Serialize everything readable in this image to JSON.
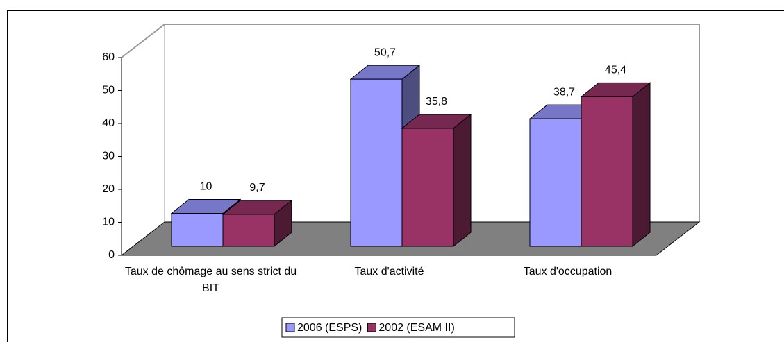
{
  "chart_data": {
    "type": "bar3d",
    "categories": [
      "Taux de chômage  au sens strict du BIT",
      "Taux d'activité",
      "Taux d'occupation"
    ],
    "series": [
      {
        "name": "2006 (ESPS)",
        "color": "#9999ff",
        "values": [
          10,
          50.7,
          38.7
        ],
        "value_labels": [
          "10",
          "50,7",
          "38,7"
        ]
      },
      {
        "name": "2002 (ESAM II)",
        "color": "#993366",
        "values": [
          9.7,
          35.8,
          45.4
        ],
        "value_labels": [
          "9,7",
          "35,8",
          "45,4"
        ]
      }
    ],
    "ylim": [
      0,
      60
    ],
    "yticks": [
      0,
      10,
      20,
      30,
      40,
      50,
      60
    ],
    "legend": "bottom"
  }
}
